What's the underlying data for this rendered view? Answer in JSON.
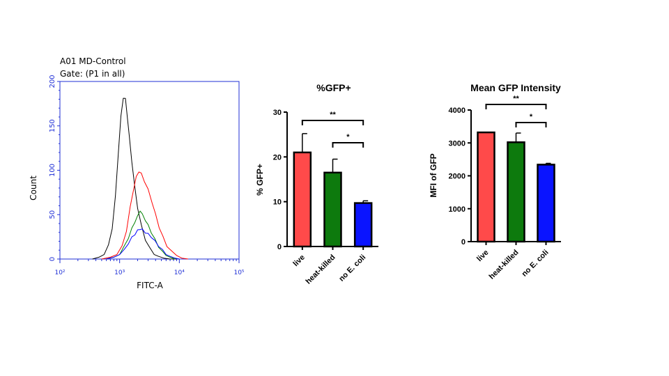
{
  "chart_data": [
    {
      "type": "line",
      "header": [
        "A01 MD-Control",
        "Gate: (P1 in all)"
      ],
      "xlabel": "FITC-A",
      "ylabel": "Count",
      "x_scale": "log",
      "xlim": [
        100,
        100000
      ],
      "ylim": [
        0,
        200
      ],
      "x_tick_labels": [
        "10²",
        "10³",
        "10⁴",
        "10⁵"
      ],
      "x_tick_values": [
        100,
        1000,
        10000,
        100000
      ],
      "y_ticks": [
        0,
        50,
        100,
        150,
        200
      ],
      "axis_color": "#1f2fd6",
      "grid": false,
      "series": [
        {
          "color": "#000000",
          "x": [
            350,
            450,
            550,
            650,
            750,
            850,
            950,
            1050,
            1150,
            1250,
            1350,
            1450,
            1600,
            1800,
            2000,
            2300,
            2700,
            3200,
            3800,
            4500,
            5500,
            7000,
            9000
          ],
          "y": [
            0,
            2,
            6,
            15,
            35,
            70,
            120,
            160,
            182,
            180,
            160,
            138,
            110,
            80,
            58,
            38,
            22,
            12,
            6,
            3,
            1,
            0,
            0
          ]
        },
        {
          "color": "#ff0000",
          "x": [
            500,
            700,
            900,
            1100,
            1300,
            1500,
            1700,
            1900,
            2100,
            2300,
            2600,
            3000,
            3500,
            4000,
            4600,
            5300,
            6200,
            7500,
            9000,
            11000,
            14000
          ],
          "y": [
            0,
            2,
            6,
            14,
            32,
            58,
            78,
            92,
            99,
            96,
            88,
            78,
            64,
            50,
            36,
            25,
            15,
            8,
            4,
            1,
            0
          ]
        },
        {
          "color": "#008000",
          "x": [
            600,
            800,
            1000,
            1200,
            1400,
            1600,
            1800,
            2000,
            2200,
            2400,
            2700,
            3000,
            3400,
            3900,
            4500,
            5200,
            6000,
            7000,
            8500
          ],
          "y": [
            0,
            2,
            6,
            14,
            24,
            34,
            42,
            48,
            55,
            50,
            44,
            38,
            30,
            22,
            14,
            8,
            4,
            2,
            0
          ]
        },
        {
          "color": "#0000ff",
          "x": [
            600,
            800,
            1000,
            1200,
            1400,
            1600,
            1800,
            2000,
            2200,
            2400,
            2700,
            3000,
            3400,
            3900,
            4500,
            5200,
            6000,
            7000,
            8500,
            10000
          ],
          "y": [
            0,
            2,
            5,
            10,
            18,
            24,
            28,
            32,
            34,
            33,
            30,
            28,
            25,
            20,
            15,
            10,
            6,
            3,
            1,
            0
          ]
        }
      ]
    },
    {
      "type": "bar",
      "title": "%GFP+",
      "ylabel": "% GFP+",
      "categories": [
        "live",
        "heat-killed",
        "no E. coli"
      ],
      "values": [
        21,
        16.5,
        9.7
      ],
      "errors": [
        4.2,
        3.0,
        0.5
      ],
      "colors": [
        "#ff4a4a",
        "#0d7a0d",
        "#0a14ff"
      ],
      "ylim": [
        0,
        30
      ],
      "y_ticks": [
        0,
        10,
        20,
        30
      ],
      "significance": [
        {
          "from": 0,
          "to": 2,
          "label": "**"
        },
        {
          "from": 1,
          "to": 2,
          "label": "*"
        }
      ]
    },
    {
      "type": "bar",
      "title": "Mean GFP Intensity",
      "ylabel": "MFI of GFP",
      "categories": [
        "live",
        "heat-killed",
        "no E. coli"
      ],
      "values": [
        3320,
        3020,
        2340
      ],
      "errors": [
        0,
        280,
        40
      ],
      "colors": [
        "#ff4a4a",
        "#0d7a0d",
        "#0a14ff"
      ],
      "ylim": [
        0,
        4000
      ],
      "y_ticks": [
        0,
        1000,
        2000,
        3000,
        4000
      ],
      "significance": [
        {
          "from": 0,
          "to": 2,
          "label": "**"
        },
        {
          "from": 1,
          "to": 2,
          "label": "*"
        }
      ]
    }
  ]
}
